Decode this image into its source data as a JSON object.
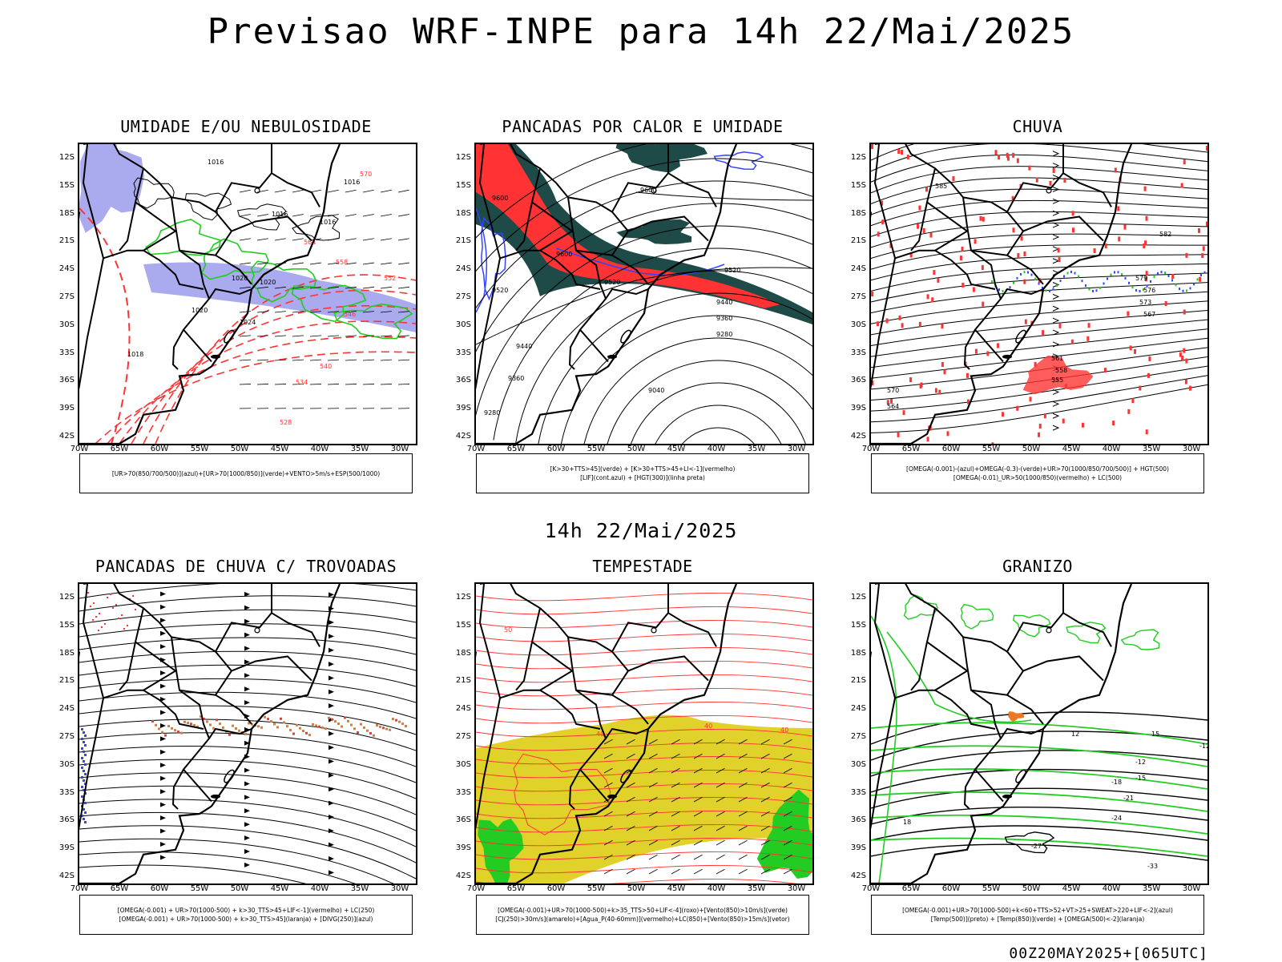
{
  "title": "Previsao WRF-INPE  para 14h 22/Mai/2025",
  "subtitle": "14h 22/Mai/2025",
  "footer": "00Z20MAY2025+[065UTC]",
  "lat_ticks": [
    "12S",
    "15S",
    "18S",
    "21S",
    "24S",
    "27S",
    "30S",
    "33S",
    "36S",
    "39S",
    "42S"
  ],
  "lon_ticks": [
    "70W",
    "65W",
    "60W",
    "55W",
    "50W",
    "45W",
    "40W",
    "35W",
    "30W"
  ],
  "colors": {
    "blue": "#3344ff",
    "green": "#22cc22",
    "red": "#ff3333",
    "lavender": "#aaaaee",
    "darkteal": "#1e4a48",
    "yellow": "#e0d22a",
    "orange": "#ee7722"
  },
  "panels": [
    {
      "title": "UMIDADE E/OU NEBULOSIDADE",
      "caption": [
        "[UR>70(850/700/500)](azul)+[UR>70(1000/850)](verde)+VENTO>5m/s+ESP(500/1000)"
      ],
      "contour_labels": [
        "1016",
        "1016",
        "1016",
        "1016",
        "1020",
        "1020",
        "1020",
        "1024",
        "1018",
        "564",
        "570",
        "558",
        "552",
        "546",
        "540",
        "534",
        "528"
      ]
    },
    {
      "title": "PANCADAS POR CALOR E UMIDADE",
      "caption": [
        "[K>30+TTS>45](verde)  +  [K>30+TTS>45+LI<-1](vermelho)",
        "[LIF](cont.azul)  +  [HGT(300)](linha preta)"
      ],
      "contour_labels": [
        "9600",
        "9600",
        "9600",
        "9520",
        "9520",
        "9520",
        "9440",
        "9440",
        "9360",
        "9360",
        "9280",
        "9280",
        "9040"
      ]
    },
    {
      "title": "CHUVA",
      "caption": [
        "[OMEGA(-0.001)-(azul)+OMEGA(-0.3)-(verde)+UR>70(1000/850/700/500)]  +  HGT(500)",
        "[OMEGA(-0.01)_UR>50(1000/850)(vermelho)  +  LC(500)"
      ],
      "contour_labels": [
        "585",
        "582",
        "579",
        "576",
        "573",
        "570",
        "567",
        "564",
        "561",
        "558",
        "555"
      ]
    },
    {
      "title": "PANCADAS DE CHUVA C/ TROVOADAS",
      "caption": [
        "[OMEGA(-0.001)  +  UR>70(1000-500)  +  k>30_TTS>45+LIF<-1](vermelho)  +  LC(250)",
        "[OMEGA(-0.001)  +  UR>70(1000-500)  +  k>30_TTS>45](laranja)  +  [DIVG(250)](azul)"
      ],
      "contour_labels": []
    },
    {
      "title": "TEMPESTADE",
      "caption": [
        "[OMEGA(-0.001)+UR>70(1000-500)+k>35_TTS>50+LIF<-4](roxo)+[Vento(850)>10m/s](verde)",
        "[CJ(250)>30m/s](amarelo)+[Agua_P(40-60mm)](vermelho)+LC(850)+[Vento(850)>15m/s](vetor)"
      ],
      "contour_labels": [
        "50",
        "40",
        "40",
        "40"
      ]
    },
    {
      "title": "GRANIZO",
      "caption": [
        "[OMEGA(-0.001)+UR>70(1000-500)+k<60+TTS>52+VT>25+SWEAT>220+LIF<-2](azul)",
        "[Temp(500)](preto)  +  [Temp(850)](verde)  +  [OMEGA(500)<-2](laranja)"
      ],
      "contour_labels": [
        "-12",
        "-12",
        "-15",
        "-18",
        "-21",
        "-24",
        "-27",
        "-33",
        "12",
        "15",
        "18"
      ]
    }
  ]
}
